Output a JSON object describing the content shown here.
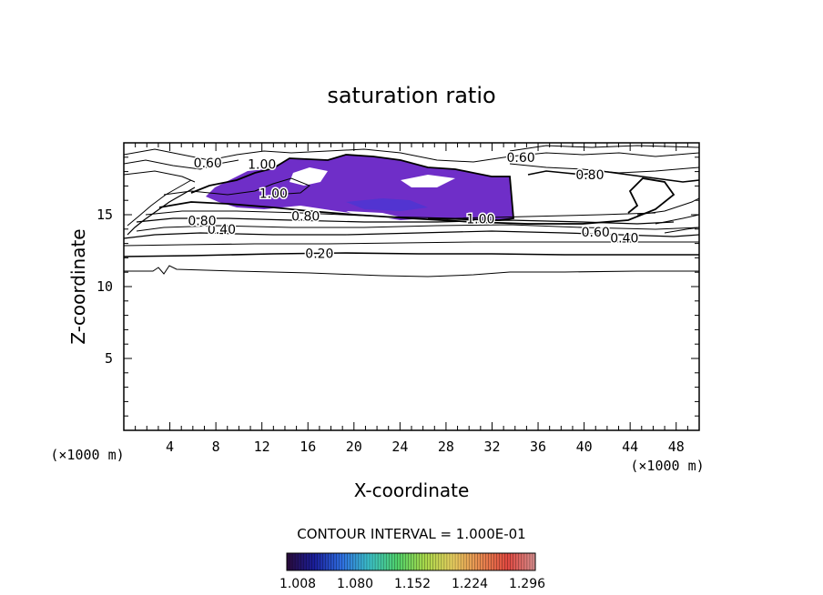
{
  "chart_data": {
    "type": "contour",
    "title": "saturation ratio",
    "xlabel": "X-coordinate",
    "ylabel": "Z-coordinate",
    "x_unit": "(×1000 m)",
    "y_unit": "(×1000 m)",
    "xlim": [
      0,
      50
    ],
    "ylim": [
      0,
      20
    ],
    "x_ticks": [
      "4",
      "8",
      "12",
      "16",
      "20",
      "24",
      "28",
      "32",
      "36",
      "40",
      "44",
      "48"
    ],
    "y_ticks": [
      "5",
      "10",
      "15"
    ],
    "grid": false,
    "contour_interval_text": "CONTOUR INTERVAL = 1.000E-01",
    "contour_labels": [
      {
        "text": "0.20",
        "x": 17.0,
        "z": 12.3
      },
      {
        "text": "0.40",
        "x": 8.5,
        "z": 14.0
      },
      {
        "text": "0.40",
        "x": 43.5,
        "z": 13.4
      },
      {
        "text": "0.60",
        "x": 41.0,
        "z": 13.8
      },
      {
        "text": "0.60",
        "x": 34.5,
        "z": 19.0
      },
      {
        "text": "0.60",
        "x": 7.3,
        "z": 18.6
      },
      {
        "text": "0.80",
        "x": 15.8,
        "z": 14.9
      },
      {
        "text": "0.80",
        "x": 6.8,
        "z": 14.6
      },
      {
        "text": "0.80",
        "x": 40.5,
        "z": 17.8
      },
      {
        "text": "1.00",
        "x": 12.0,
        "z": 18.5
      },
      {
        "text": "1.00",
        "x": 13.0,
        "z": 16.5
      },
      {
        "text": "1.00",
        "x": 31.0,
        "z": 14.7
      }
    ],
    "colorbar": {
      "ticks": [
        "1.008",
        "1.080",
        "1.152",
        "1.224",
        "1.296"
      ],
      "range": [
        1.008,
        1.32
      ],
      "colors": [
        "#2a0a3a",
        "#1a1e9a",
        "#2f6fe0",
        "#3cc2c8",
        "#4fd06a",
        "#a8d84a",
        "#e8d060",
        "#e88a50",
        "#e04840",
        "#d89090"
      ]
    },
    "colors": {
      "supersaturated_fill": "#6f2ec8",
      "supersaturated_core": "#3a3ad8"
    }
  }
}
